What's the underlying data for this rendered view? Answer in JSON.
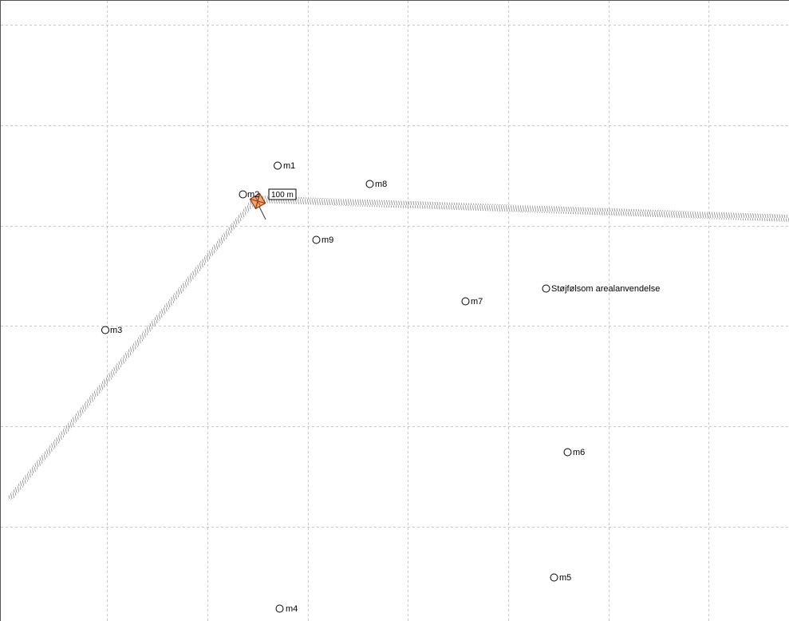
{
  "map": {
    "scale_label": "100 m",
    "points": [
      {
        "id": "m1",
        "label": "m1"
      },
      {
        "id": "m2",
        "label": "m2"
      },
      {
        "id": "m3",
        "label": "m3"
      },
      {
        "id": "m4",
        "label": "m4"
      },
      {
        "id": "m5",
        "label": "m5"
      },
      {
        "id": "m6",
        "label": "m6"
      },
      {
        "id": "m7",
        "label": "m7"
      },
      {
        "id": "m8",
        "label": "m8"
      },
      {
        "id": "m9",
        "label": "m9"
      },
      {
        "id": "arealanvendelse",
        "label": "Støjfølsom arealanvendelse"
      }
    ]
  }
}
